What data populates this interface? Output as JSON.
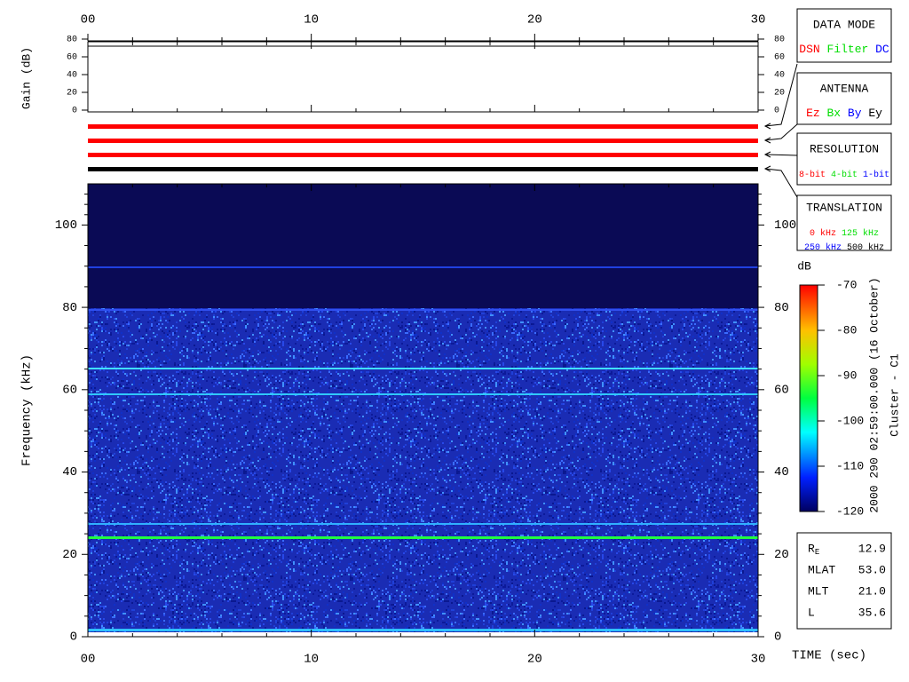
{
  "chart_data": [
    {
      "type": "line",
      "ylabel": "Gain (dB)",
      "xlim": [
        0,
        30
      ],
      "xticks": [
        {
          "value": 0,
          "label": "00"
        },
        10,
        20,
        30
      ],
      "ylim": [
        0,
        80
      ],
      "yticks": [
        0,
        20,
        40,
        60,
        80
      ]
    },
    {
      "type": "heatmap",
      "ylabel": "Frequency (kHz)",
      "xlabel": "TIME (sec)",
      "xlim": [
        0,
        30
      ],
      "xticks": [
        {
          "value": 0,
          "label": "00"
        },
        10,
        20,
        30
      ],
      "ylim": [
        0,
        110
      ],
      "yticks": [
        0,
        20,
        40,
        60,
        80,
        100
      ],
      "colorbar": {
        "label": "dB",
        "lim": [
          -120,
          -70
        ],
        "ticks": [
          -70,
          -80,
          -90,
          -100,
          -110,
          -120
        ]
      }
    }
  ],
  "data_mode": {
    "title": "DATA MODE",
    "items": [
      {
        "label": "DSN",
        "color": "#ff0000"
      },
      {
        "label": "Filter",
        "color": "#00dd00"
      },
      {
        "label": "DC",
        "color": "#0000ff"
      }
    ]
  },
  "antenna": {
    "title": "ANTENNA",
    "items": [
      {
        "label": "Ez",
        "color": "#ff0000"
      },
      {
        "label": "Bx",
        "color": "#00dd00"
      },
      {
        "label": "By",
        "color": "#0000ff"
      },
      {
        "label": "Ey",
        "color": "#000000"
      }
    ]
  },
  "resolution": {
    "title": "RESOLUTION",
    "items": [
      {
        "label": "8-bit",
        "color": "#ff0000"
      },
      {
        "label": "4-bit",
        "color": "#00dd00"
      },
      {
        "label": "1-bit",
        "color": "#0000ff"
      }
    ]
  },
  "translation": {
    "title": "TRANSLATION",
    "items": [
      {
        "label": "0 kHz",
        "color": "#ff0000"
      },
      {
        "label": "125 kHz",
        "color": "#00dd00"
      },
      {
        "label": "250 kHz",
        "color": "#0000ff"
      },
      {
        "label": "500 kHz",
        "color": "#000000"
      }
    ]
  },
  "timestamp": "2000 290 02:59:00.000 (16 October)",
  "spacecraft": "Cluster - C1",
  "info": [
    {
      "label": "R",
      "sub": "E",
      "value": "12.9"
    },
    {
      "label": "MLAT",
      "value": "53.0"
    },
    {
      "label": "MLT",
      "value": "21.0"
    },
    {
      "label": "L",
      "value": "35.6"
    }
  ]
}
